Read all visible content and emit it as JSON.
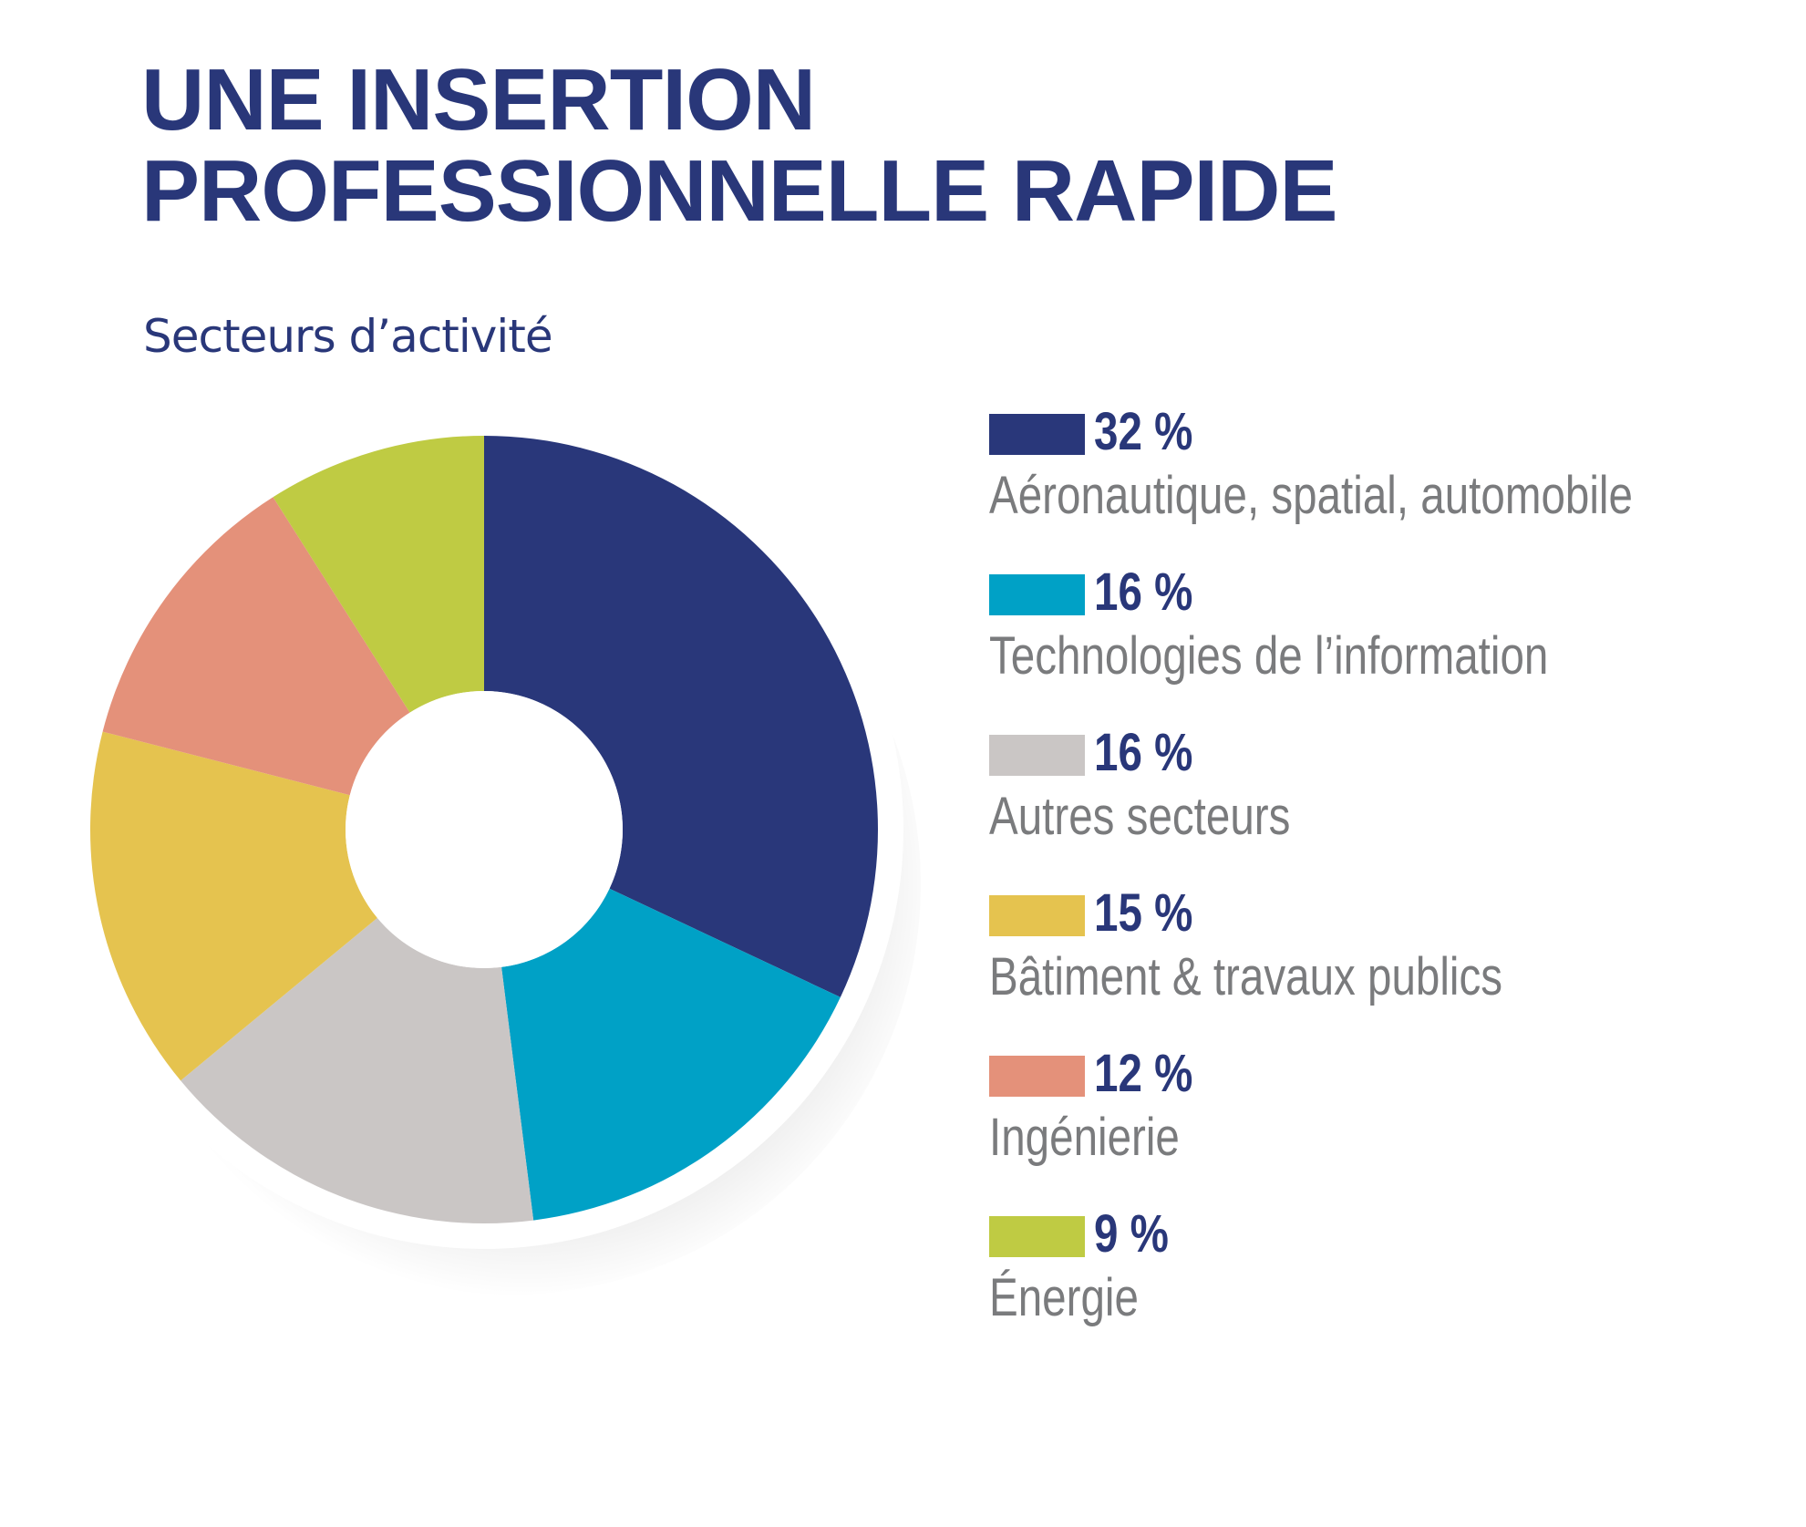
{
  "title_line1": "UNE INSERTION",
  "title_line2": "PROFESSIONNELLE RAPIDE",
  "subtitle": "Secteurs d’activité",
  "colors": {
    "title": "#293779",
    "label": "#7a7b7d",
    "ring": "#ffffff"
  },
  "chart_data": {
    "type": "pie",
    "variant": "donut",
    "unit": "%",
    "legend_position": "right",
    "categories": [
      "Aéronautique, spatial, automobile",
      "Technologies de l’information",
      "Autres secteurs",
      "Bâtiment & travaux publics",
      "Ingénierie",
      "Énergie"
    ],
    "values": [
      32,
      16,
      16,
      15,
      12,
      9
    ],
    "value_labels": [
      "32 %",
      "16 %",
      "16 %",
      "15 %",
      "12 %",
      "9 %"
    ],
    "colors": [
      "#29377a",
      "#00a1c6",
      "#cac6c5",
      "#e5c34f",
      "#e4917a",
      "#bfcb43"
    ]
  }
}
